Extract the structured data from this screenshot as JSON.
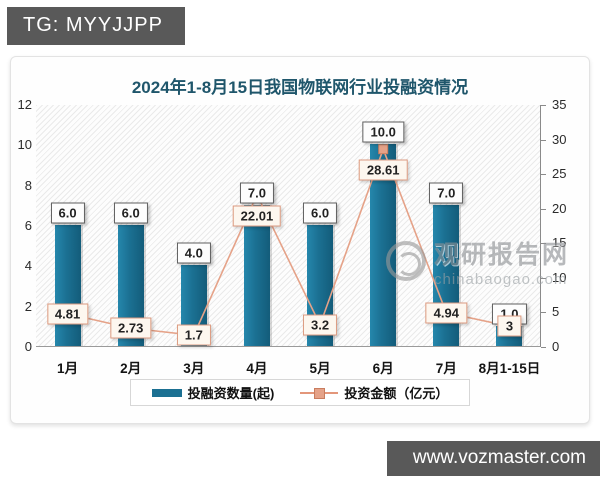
{
  "badges": {
    "top_left": "TG: MYYJJPP",
    "bottom_right": "www.vozmaster.com"
  },
  "watermark": {
    "name": "观研报告网",
    "site": "chinabaogao.com"
  },
  "chart_data": {
    "type": "bar",
    "title": "2024年1-8月15日我国物联网行业投融资情况",
    "categories": [
      "1月",
      "2月",
      "3月",
      "4月",
      "5月",
      "6月",
      "7月",
      "8月1-15日"
    ],
    "series": [
      {
        "name": "投融资数量(起)",
        "type": "bar",
        "axis": "left",
        "color": "#1b7092",
        "values": [
          6,
          6,
          4,
          7,
          6,
          10,
          7,
          1
        ],
        "labels": [
          "6.0",
          "6.0",
          "4.0",
          "7.0",
          "6.0",
          "10.0",
          "7.0",
          "1.0"
        ]
      },
      {
        "name": "投资金额（亿元）",
        "type": "line",
        "axis": "right",
        "color": "#e5a288",
        "values": [
          4.81,
          2.73,
          1.7,
          22.01,
          3.2,
          28.61,
          4.94,
          3
        ],
        "labels": [
          "4.81",
          "2.73",
          "1.7",
          "22.01",
          "3.2",
          "28.61",
          "4.94",
          "3"
        ]
      }
    ],
    "left_axis": {
      "min": 0,
      "max": 12,
      "ticks": [
        0,
        2,
        4,
        6,
        8,
        10,
        12
      ]
    },
    "right_axis": {
      "min": 0,
      "max": 35,
      "ticks": [
        0,
        5,
        10,
        15,
        20,
        25,
        30,
        35
      ]
    },
    "grid": false,
    "legend_position": "bottom",
    "plot_background": "diagonal-hatch"
  }
}
